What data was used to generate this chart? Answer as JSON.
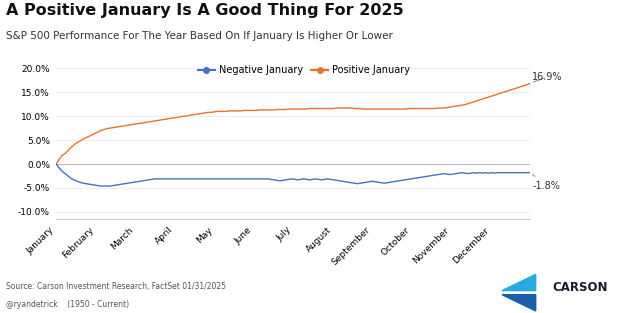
{
  "title": "A Positive January Is A Good Thing For 2025",
  "subtitle": "S&P 500 Performance For The Year Based On If January Is Higher Or Lower",
  "source_line1": "Source: Carson Investment Research, FactSet 01/31/2025",
  "source_line2": "@ryandetrick    (1950 - Current)",
  "positive_label": "Positive January",
  "negative_label": "Negative January",
  "positive_color": "#E8732A",
  "negative_color": "#4472C4",
  "positive_end_value": "16.9%",
  "negative_end_value": "-1.8%",
  "ylim": [
    -0.115,
    0.225
  ],
  "yticks": [
    -0.1,
    -0.05,
    0.0,
    0.05,
    0.1,
    0.15,
    0.2
  ],
  "ytick_labels": [
    "-10.0%",
    "-5.0%",
    "0.0%",
    "5.0%",
    "10.0%",
    "15.0%",
    "20.0%"
  ],
  "months": [
    "January",
    "February",
    "March",
    "April",
    "May",
    "June",
    "July",
    "August",
    "September",
    "October",
    "November",
    "December"
  ],
  "background_color": "#FFFFFF",
  "grid_color": "#E8E8E8",
  "spine_color": "#CCCCCC",
  "positive_january": [
    0.0,
    0.01,
    0.018,
    0.022,
    0.028,
    0.035,
    0.04,
    0.045,
    0.048,
    0.052,
    0.055,
    0.058,
    0.061,
    0.064,
    0.067,
    0.07,
    0.072,
    0.074,
    0.075,
    0.076,
    0.077,
    0.078,
    0.079,
    0.08,
    0.081,
    0.082,
    0.083,
    0.084,
    0.085,
    0.086,
    0.087,
    0.088,
    0.089,
    0.09,
    0.091,
    0.092,
    0.093,
    0.094,
    0.095,
    0.096,
    0.097,
    0.098,
    0.099,
    0.1,
    0.101,
    0.102,
    0.103,
    0.104,
    0.105,
    0.106,
    0.107,
    0.108,
    0.108,
    0.109,
    0.11,
    0.11,
    0.11,
    0.11,
    0.111,
    0.111,
    0.111,
    0.111,
    0.111,
    0.112,
    0.112,
    0.112,
    0.112,
    0.112,
    0.113,
    0.113,
    0.113,
    0.113,
    0.113,
    0.113,
    0.114,
    0.114,
    0.114,
    0.114,
    0.115,
    0.115,
    0.115,
    0.115,
    0.115,
    0.115,
    0.115,
    0.116,
    0.116,
    0.116,
    0.116,
    0.116,
    0.116,
    0.116,
    0.116,
    0.116,
    0.117,
    0.117,
    0.117,
    0.117,
    0.117,
    0.117,
    0.116,
    0.116,
    0.116,
    0.115,
    0.115,
    0.115,
    0.115,
    0.115,
    0.115,
    0.115,
    0.115,
    0.115,
    0.115,
    0.115,
    0.115,
    0.115,
    0.115,
    0.115,
    0.116,
    0.116,
    0.116,
    0.116,
    0.116,
    0.116,
    0.116,
    0.116,
    0.116,
    0.116,
    0.117,
    0.117,
    0.117,
    0.118,
    0.119,
    0.12,
    0.121,
    0.122,
    0.123,
    0.124,
    0.126,
    0.128,
    0.13,
    0.132,
    0.134,
    0.136,
    0.138,
    0.14,
    0.142,
    0.144,
    0.146,
    0.148,
    0.15,
    0.152,
    0.154,
    0.156,
    0.158,
    0.16,
    0.162,
    0.164,
    0.166,
    0.169
  ],
  "negative_january": [
    0.0,
    -0.008,
    -0.015,
    -0.02,
    -0.025,
    -0.03,
    -0.033,
    -0.036,
    -0.038,
    -0.04,
    -0.041,
    -0.042,
    -0.043,
    -0.044,
    -0.045,
    -0.046,
    -0.046,
    -0.046,
    -0.046,
    -0.045,
    -0.044,
    -0.043,
    -0.042,
    -0.041,
    -0.04,
    -0.039,
    -0.038,
    -0.037,
    -0.036,
    -0.035,
    -0.034,
    -0.033,
    -0.032,
    -0.031,
    -0.031,
    -0.031,
    -0.031,
    -0.031,
    -0.031,
    -0.031,
    -0.031,
    -0.031,
    -0.031,
    -0.031,
    -0.031,
    -0.031,
    -0.031,
    -0.031,
    -0.031,
    -0.031,
    -0.031,
    -0.031,
    -0.031,
    -0.031,
    -0.031,
    -0.031,
    -0.031,
    -0.031,
    -0.031,
    -0.031,
    -0.031,
    -0.031,
    -0.031,
    -0.031,
    -0.031,
    -0.031,
    -0.031,
    -0.031,
    -0.031,
    -0.031,
    -0.031,
    -0.031,
    -0.032,
    -0.033,
    -0.034,
    -0.035,
    -0.034,
    -0.033,
    -0.032,
    -0.031,
    -0.032,
    -0.033,
    -0.032,
    -0.031,
    -0.032,
    -0.033,
    -0.032,
    -0.031,
    -0.032,
    -0.033,
    -0.032,
    -0.031,
    -0.032,
    -0.033,
    -0.034,
    -0.035,
    -0.036,
    -0.037,
    -0.038,
    -0.039,
    -0.04,
    -0.041,
    -0.04,
    -0.039,
    -0.038,
    -0.037,
    -0.036,
    -0.037,
    -0.038,
    -0.039,
    -0.04,
    -0.039,
    -0.038,
    -0.037,
    -0.036,
    -0.035,
    -0.034,
    -0.033,
    -0.032,
    -0.031,
    -0.03,
    -0.029,
    -0.028,
    -0.027,
    -0.026,
    -0.025,
    -0.024,
    -0.023,
    -0.022,
    -0.021,
    -0.02,
    -0.021,
    -0.022,
    -0.021,
    -0.02,
    -0.019,
    -0.018,
    -0.019,
    -0.02,
    -0.019,
    -0.018,
    -0.019,
    -0.018,
    -0.019,
    -0.018,
    -0.019,
    -0.018,
    -0.019,
    -0.018,
    -0.018,
    -0.018,
    -0.018,
    -0.018,
    -0.018,
    -0.018,
    -0.018,
    -0.018,
    -0.018,
    -0.018,
    -0.018
  ]
}
